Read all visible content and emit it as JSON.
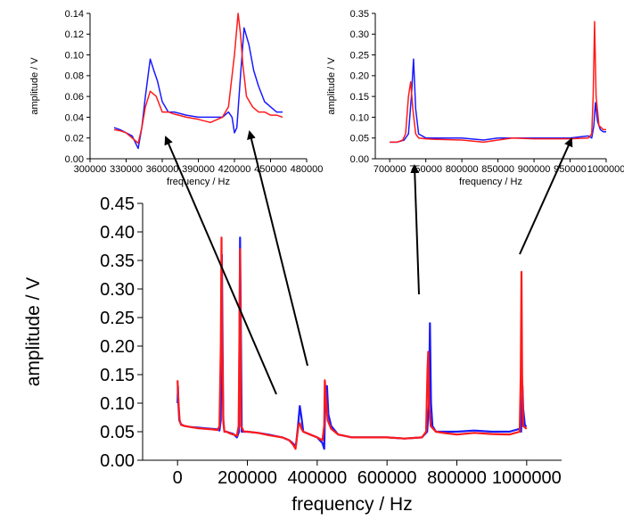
{
  "chart_data": [
    {
      "id": "main",
      "type": "line",
      "xlabel": "frequency / Hz",
      "ylabel": "amplitude / V",
      "xlim": [
        -100000,
        1100000
      ],
      "ylim": [
        0.0,
        0.45
      ],
      "xticks": [
        0,
        200000,
        400000,
        600000,
        800000,
        1000000
      ],
      "yticks": [
        0.0,
        0.05,
        0.1,
        0.15,
        0.2,
        0.25,
        0.3,
        0.35,
        0.4,
        0.45
      ],
      "series": [
        {
          "color": "#1a1aff",
          "x": [
            0,
            1000,
            2500,
            5000,
            10000,
            20000,
            40000,
            60000,
            80000,
            100000,
            115000,
            120000,
            124000,
            127000,
            129000,
            131000,
            134000,
            140000,
            150000,
            160000,
            170000,
            176000,
            179000,
            181000,
            184000,
            190000,
            200000,
            230000,
            260000,
            300000,
            320000,
            330000,
            335000,
            340000,
            345000,
            350000,
            355000,
            360000,
            380000,
            400000,
            415000,
            420000,
            424000,
            428000,
            432000,
            440000,
            460000,
            500000,
            550000,
            600000,
            650000,
            700000,
            715000,
            720000,
            723000,
            726000,
            730000,
            740000,
            760000,
            800000,
            850000,
            900000,
            950000,
            980000,
            984000,
            986000,
            988000,
            990000,
            995000,
            1000000
          ],
          "y": [
            0.1,
            0.13,
            0.1,
            0.07,
            0.063,
            0.06,
            0.058,
            0.057,
            0.056,
            0.055,
            0.054,
            0.052,
            0.07,
            0.36,
            0.2,
            0.07,
            0.05,
            0.05,
            0.048,
            0.046,
            0.04,
            0.05,
            0.39,
            0.25,
            0.05,
            0.05,
            0.05,
            0.048,
            0.045,
            0.04,
            0.035,
            0.03,
            0.025,
            0.03,
            0.06,
            0.095,
            0.075,
            0.05,
            0.045,
            0.04,
            0.03,
            0.02,
            0.12,
            0.13,
            0.08,
            0.06,
            0.045,
            0.04,
            0.04,
            0.04,
            0.038,
            0.04,
            0.05,
            0.1,
            0.24,
            0.1,
            0.06,
            0.05,
            0.05,
            0.05,
            0.052,
            0.05,
            0.05,
            0.055,
            0.05,
            0.09,
            0.13,
            0.09,
            0.06,
            0.06
          ]
        },
        {
          "color": "#ff1a1a",
          "x": [
            0,
            1000,
            3000,
            6000,
            10000,
            20000,
            40000,
            60000,
            80000,
            100000,
            115000,
            120000,
            124000,
            126000,
            128000,
            131000,
            134000,
            140000,
            150000,
            160000,
            170000,
            175000,
            177000,
            179000,
            182000,
            190000,
            200000,
            230000,
            260000,
            300000,
            320000,
            330000,
            338000,
            342000,
            346000,
            350000,
            355000,
            360000,
            380000,
            400000,
            415000,
            420000,
            422000,
            426000,
            430000,
            440000,
            460000,
            500000,
            550000,
            600000,
            650000,
            700000,
            712000,
            716000,
            718000,
            720000,
            725000,
            740000,
            760000,
            800000,
            850000,
            900000,
            950000,
            980000,
            983000,
            985000,
            987000,
            990000,
            1000000
          ],
          "y": [
            0.14,
            0.12,
            0.1,
            0.07,
            0.062,
            0.06,
            0.058,
            0.056,
            0.055,
            0.054,
            0.053,
            0.06,
            0.2,
            0.39,
            0.2,
            0.07,
            0.05,
            0.05,
            0.047,
            0.045,
            0.043,
            0.06,
            0.2,
            0.37,
            0.06,
            0.05,
            0.05,
            0.048,
            0.044,
            0.04,
            0.035,
            0.028,
            0.02,
            0.04,
            0.06,
            0.065,
            0.055,
            0.05,
            0.045,
            0.04,
            0.035,
            0.06,
            0.14,
            0.1,
            0.07,
            0.055,
            0.045,
            0.04,
            0.04,
            0.04,
            0.038,
            0.04,
            0.05,
            0.16,
            0.19,
            0.1,
            0.06,
            0.05,
            0.048,
            0.045,
            0.048,
            0.046,
            0.045,
            0.05,
            0.15,
            0.33,
            0.15,
            0.06,
            0.055
          ]
        }
      ]
    },
    {
      "id": "inset-left",
      "type": "line",
      "xlabel": "frequency / Hz",
      "ylabel": "amplitude / V",
      "xlim": [
        300000,
        480000
      ],
      "ylim": [
        0.0,
        0.14
      ],
      "xticks": [
        300000,
        330000,
        360000,
        390000,
        420000,
        450000,
        480000
      ],
      "yticks": [
        0.0,
        0.02,
        0.04,
        0.06,
        0.08,
        0.1,
        0.12,
        0.14
      ],
      "series": [
        {
          "color": "#1a1aff",
          "x": [
            320000,
            325000,
            330000,
            335000,
            340000,
            343000,
            346000,
            350000,
            353000,
            356000,
            360000,
            365000,
            370000,
            380000,
            390000,
            400000,
            410000,
            415000,
            418000,
            420000,
            422000,
            425000,
            428000,
            432000,
            436000,
            440000,
            445000,
            450000,
            455000,
            460000
          ],
          "y": [
            0.03,
            0.028,
            0.025,
            0.022,
            0.01,
            0.03,
            0.06,
            0.096,
            0.085,
            0.075,
            0.055,
            0.045,
            0.045,
            0.042,
            0.04,
            0.04,
            0.04,
            0.045,
            0.04,
            0.025,
            0.03,
            0.08,
            0.126,
            0.11,
            0.085,
            0.07,
            0.055,
            0.05,
            0.045,
            0.045
          ]
        },
        {
          "color": "#ff1a1a",
          "x": [
            320000,
            325000,
            330000,
            335000,
            340000,
            343000,
            346000,
            350000,
            355000,
            360000,
            365000,
            370000,
            380000,
            390000,
            400000,
            410000,
            415000,
            420000,
            423000,
            425000,
            427000,
            430000,
            435000,
            440000,
            445000,
            450000,
            455000,
            460000
          ],
          "y": [
            0.028,
            0.027,
            0.025,
            0.02,
            0.015,
            0.03,
            0.05,
            0.065,
            0.06,
            0.045,
            0.045,
            0.043,
            0.04,
            0.038,
            0.035,
            0.04,
            0.05,
            0.1,
            0.14,
            0.12,
            0.09,
            0.06,
            0.05,
            0.045,
            0.045,
            0.042,
            0.042,
            0.04
          ]
        }
      ]
    },
    {
      "id": "inset-right",
      "type": "line",
      "xlabel": "frequency / Hz",
      "ylabel": "amplitude / V",
      "xlim": [
        680000,
        1000000
      ],
      "ylim": [
        0.0,
        0.35
      ],
      "xticks": [
        700000,
        750000,
        800000,
        850000,
        900000,
        950000,
        1000000
      ],
      "yticks": [
        0.0,
        0.05,
        0.1,
        0.15,
        0.2,
        0.25,
        0.3,
        0.35
      ],
      "series": [
        {
          "color": "#1a1aff",
          "x": [
            700000,
            710000,
            720000,
            726000,
            730000,
            733000,
            736000,
            740000,
            750000,
            760000,
            800000,
            830000,
            850000,
            870000,
            900000,
            950000,
            975000,
            980000,
            983000,
            985000,
            988000,
            992000,
            996000,
            1000000
          ],
          "y": [
            0.04,
            0.04,
            0.045,
            0.06,
            0.15,
            0.24,
            0.12,
            0.06,
            0.05,
            0.05,
            0.05,
            0.045,
            0.05,
            0.05,
            0.05,
            0.05,
            0.055,
            0.05,
            0.08,
            0.135,
            0.09,
            0.07,
            0.065,
            0.065
          ]
        },
        {
          "color": "#ff1a1a",
          "x": [
            700000,
            710000,
            718000,
            722000,
            726000,
            729000,
            732000,
            736000,
            740000,
            750000,
            760000,
            800000,
            830000,
            850000,
            870000,
            900000,
            950000,
            975000,
            980000,
            982000,
            984000,
            986000,
            990000,
            996000,
            1000000
          ],
          "y": [
            0.04,
            0.04,
            0.045,
            0.06,
            0.15,
            0.185,
            0.12,
            0.06,
            0.05,
            0.048,
            0.047,
            0.045,
            0.04,
            0.045,
            0.05,
            0.048,
            0.048,
            0.05,
            0.06,
            0.15,
            0.33,
            0.15,
            0.08,
            0.07,
            0.07
          ]
        }
      ]
    }
  ]
}
